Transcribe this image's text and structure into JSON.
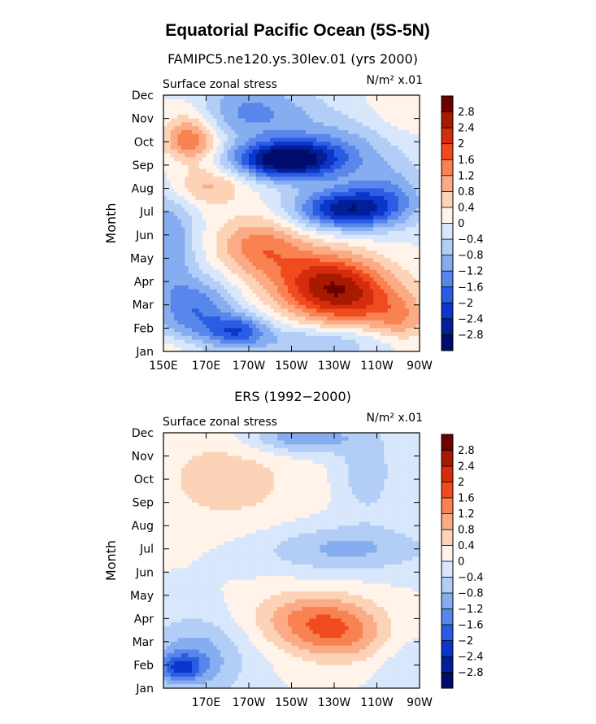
{
  "figure": {
    "title": "Equatorial Pacific Ocean (5S-5N)"
  },
  "scale": {
    "levels": [
      -2.8,
      -2.4,
      -2,
      -1.6,
      -1.2,
      -0.8,
      -0.4,
      0,
      0.4,
      0.8,
      1.2,
      1.6,
      2,
      2.4,
      2.8
    ],
    "labels": [
      "2.8",
      "2.4",
      "2",
      "1.6",
      "1.2",
      "0.8",
      "0.4",
      "0",
      "−0.4",
      "−0.8",
      "−1.2",
      "−1.6",
      "−2",
      "−2.4",
      "−2.8"
    ],
    "colors_top_to_bottom": [
      "#6f0000",
      "#a81a00",
      "#d42c0c",
      "#f14a1f",
      "#f88251",
      "#fbab86",
      "#fcd3b6",
      "#fff3ea",
      "#d8e7fb",
      "#b2cef6",
      "#86adf0",
      "#5886ea",
      "#2b5ce4",
      "#0c36c9",
      "#021f97",
      "#000c6b"
    ]
  },
  "chart_data": [
    {
      "type": "heatmap",
      "subtitle": "FAMIPC5.ne120.ys.30lev.01 (yrs 2000)",
      "variable": "Surface zonal stress",
      "units": "N/m² x.01",
      "ylabel": "Month",
      "y_categories": [
        "Jan",
        "Feb",
        "Mar",
        "Apr",
        "May",
        "Jun",
        "Jul",
        "Aug",
        "Sep",
        "Oct",
        "Nov",
        "Dec"
      ],
      "x_tick_labels": [
        "150E",
        "170E",
        "170W",
        "150W",
        "130W",
        "110W",
        "90W"
      ],
      "x_ticks_deg_east": [
        150,
        170,
        190,
        210,
        230,
        250,
        270
      ],
      "xlim": [
        150,
        270
      ],
      "ylim": [
        1,
        12
      ],
      "features": [
        {
          "x": 190,
          "y": 11.3,
          "sx": 22,
          "sy": 0.9,
          "v": -1.3
        },
        {
          "x": 162,
          "y": 11.0,
          "sx": 10,
          "sy": 0.8,
          "v": 0.7
        },
        {
          "x": 262,
          "y": 11.5,
          "sx": 10,
          "sy": 0.9,
          "v": 0.4
        },
        {
          "x": 163,
          "y": 10.0,
          "sx": 9,
          "sy": 0.6,
          "v": 1.4
        },
        {
          "x": 210,
          "y": 9.2,
          "sx": 16,
          "sy": 0.6,
          "v": -2.6
        },
        {
          "x": 195,
          "y": 9.25,
          "sx": 14,
          "sy": 0.5,
          "v": -0.8
        },
        {
          "x": 232,
          "y": 9.7,
          "sx": 20,
          "sy": 0.9,
          "v": -0.9
        },
        {
          "x": 170,
          "y": 8.1,
          "sx": 13,
          "sy": 0.6,
          "v": 0.9
        },
        {
          "x": 235,
          "y": 7.1,
          "sx": 17,
          "sy": 0.6,
          "v": -2.5
        },
        {
          "x": 255,
          "y": 7.8,
          "sx": 14,
          "sy": 0.9,
          "v": -1.0
        },
        {
          "x": 152,
          "y": 5.8,
          "sx": 9,
          "sy": 1.6,
          "v": -1.2
        },
        {
          "x": 195,
          "y": 5.5,
          "sx": 14,
          "sy": 0.9,
          "v": 1.4
        },
        {
          "x": 225,
          "y": 4.0,
          "sx": 18,
          "sy": 1.0,
          "v": 2.0
        },
        {
          "x": 240,
          "y": 3.2,
          "sx": 18,
          "sy": 0.9,
          "v": 1.4
        },
        {
          "x": 262,
          "y": 2.3,
          "sx": 10,
          "sy": 0.7,
          "v": 0.8
        },
        {
          "x": 165,
          "y": 2.8,
          "sx": 13,
          "sy": 1.0,
          "v": -1.5
        },
        {
          "x": 185,
          "y": 1.9,
          "sx": 10,
          "sy": 0.5,
          "v": -1.6
        },
        {
          "x": 222,
          "y": 1.4,
          "sx": 24,
          "sy": 0.5,
          "v": -0.9
        },
        {
          "x": 155,
          "y": 1.1,
          "sx": 8,
          "sy": 0.4,
          "v": 0.4
        }
      ]
    },
    {
      "type": "heatmap",
      "subtitle": "ERS (1992−2000)",
      "variable": "Surface zonal stress",
      "units": "N/m² x.01",
      "ylabel": "Month",
      "y_categories": [
        "Jan",
        "Feb",
        "Mar",
        "Apr",
        "May",
        "Jun",
        "Jul",
        "Aug",
        "Sep",
        "Oct",
        "Nov",
        "Dec"
      ],
      "x_tick_labels": [
        "170E",
        "170W",
        "150W",
        "130W",
        "110W",
        "90W"
      ],
      "x_ticks_deg_east": [
        170,
        190,
        210,
        230,
        250,
        270
      ],
      "xlim": [
        150,
        270
      ],
      "ylim": [
        1,
        12
      ],
      "features": [
        {
          "x": 180,
          "y": 10.0,
          "sx": 25,
          "sy": 1.5,
          "v": 0.6
        },
        {
          "x": 215,
          "y": 11.8,
          "sx": 18,
          "sy": 0.5,
          "v": -1.2
        },
        {
          "x": 245,
          "y": 10.3,
          "sx": 9,
          "sy": 1.3,
          "v": -0.7
        },
        {
          "x": 235,
          "y": 7.0,
          "sx": 28,
          "sy": 0.7,
          "v": -0.9
        },
        {
          "x": 220,
          "y": 4.1,
          "sx": 20,
          "sy": 0.8,
          "v": 1.1
        },
        {
          "x": 232,
          "y": 3.2,
          "sx": 18,
          "sy": 0.8,
          "v": 1.1
        },
        {
          "x": 165,
          "y": 2.3,
          "sx": 16,
          "sy": 1.2,
          "v": -1.1
        },
        {
          "x": 158,
          "y": 1.9,
          "sx": 7,
          "sy": 0.4,
          "v": -1.4
        },
        {
          "x": 262,
          "y": 2.2,
          "sx": 10,
          "sy": 1.2,
          "v": -0.3
        }
      ]
    }
  ]
}
